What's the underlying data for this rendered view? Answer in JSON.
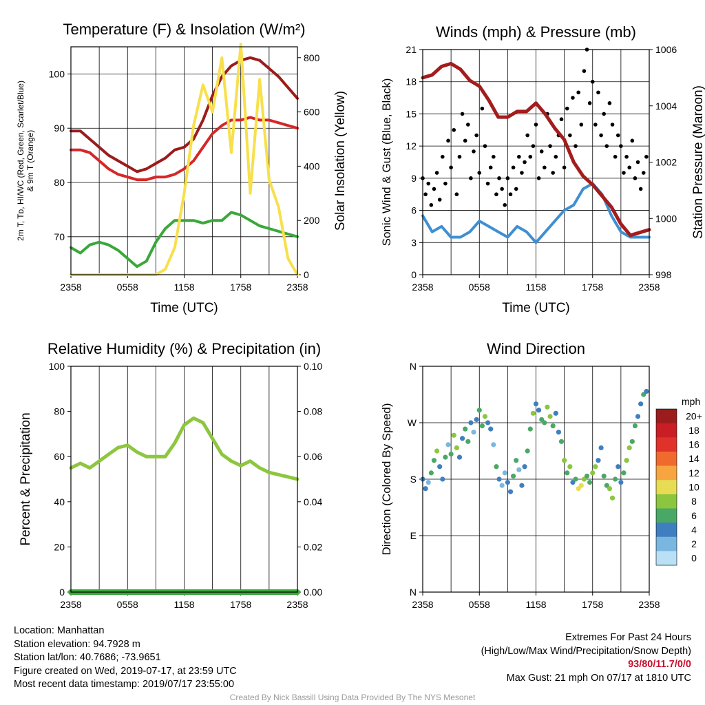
{
  "time_ticks": [
    "2358",
    "0558",
    "1158",
    "1758",
    "2358"
  ],
  "chart_data": [
    {
      "type": "line",
      "title": "Temperature (F) & Insolation (W/m²)",
      "xlabel": "Time (UTC)",
      "ylabel": "2m T, Tᴅ, HI/WC (Red, Green, Scarlet/Blue) & 9m T (Orange)",
      "ylabel_lines": [
        "2m T, Tᴅ, HI/WC (Red, Green, Scarlet/Blue)",
        "& 9m T (Orange)"
      ],
      "ylabel_right": "Solar Insolation (Yellow)",
      "ylim": [
        63,
        105
      ],
      "ylim_right": [
        0,
        840
      ],
      "yticks": [
        70,
        80,
        90,
        100
      ],
      "yticks_right": [
        0,
        200,
        400,
        600,
        800
      ],
      "x_hours": [
        0,
        1,
        2,
        3,
        4,
        5,
        6,
        7,
        8,
        9,
        10,
        11,
        12,
        13,
        14,
        15,
        16,
        17,
        18,
        19,
        20,
        21,
        22,
        23,
        24
      ],
      "series": [
        {
          "color": "#9b1c1c",
          "axis": "left",
          "values": [
            89.5,
            89.5,
            88,
            86.5,
            85,
            84,
            83,
            82,
            82.5,
            83.5,
            84.5,
            86,
            86.5,
            88,
            91.5,
            96,
            99.5,
            101.5,
            102.5,
            103,
            102.5,
            101,
            99.5,
            97.5,
            95.5
          ]
        },
        {
          "color": "#d62728",
          "axis": "left",
          "values": [
            86,
            86,
            85.5,
            84,
            82.5,
            81.5,
            81,
            80.5,
            80.5,
            81,
            81,
            81.5,
            82.5,
            84,
            86.5,
            89,
            90.5,
            91.5,
            91.5,
            92,
            91.5,
            91.5,
            91,
            90.5,
            90
          ]
        },
        {
          "color": "#3aa83a",
          "axis": "left",
          "values": [
            68,
            67,
            68.5,
            69,
            68.5,
            67.5,
            66,
            64.5,
            65.5,
            69,
            71.5,
            73,
            73,
            73,
            72.5,
            73,
            73,
            74.5,
            74,
            73,
            72,
            71.5,
            71,
            70.5,
            70
          ]
        },
        {
          "color": "#f7e04b",
          "axis": "right",
          "values": [
            0,
            0,
            0,
            0,
            0,
            0,
            0,
            0,
            0,
            0,
            20,
            100,
            300,
            550,
            700,
            600,
            800,
            450,
            850,
            300,
            720,
            350,
            250,
            60,
            0
          ]
        }
      ]
    },
    {
      "type": "line",
      "title": "Winds (mph) & Pressure (mb)",
      "xlabel": "Time (UTC)",
      "ylabel": "Sonic Wind & Gust (Blue, Black)",
      "ylabel_right": "Station Pressure (Maroon)",
      "ylim": [
        0,
        21
      ],
      "ylim_right": [
        998,
        1006
      ],
      "yticks": [
        0,
        3,
        6,
        9,
        12,
        15,
        18,
        21
      ],
      "yticks_right": [
        998,
        1000,
        1002,
        1004,
        1006
      ],
      "x_hours": [
        0,
        1,
        2,
        3,
        4,
        5,
        6,
        7,
        8,
        9,
        10,
        11,
        12,
        13,
        14,
        15,
        16,
        17,
        18,
        19,
        20,
        21,
        22,
        23,
        24
      ],
      "series": [
        {
          "color": "#3f8fd2",
          "axis": "left",
          "values": [
            5.5,
            4,
            4.5,
            3.5,
            3.5,
            4,
            5,
            4.5,
            4,
            3.5,
            4.5,
            4,
            3,
            4,
            5,
            6,
            6.5,
            8,
            8.5,
            7.5,
            5.5,
            4,
            3.5,
            3.5,
            3.5
          ]
        },
        {
          "color": "#a31d1d",
          "axis": "right",
          "values": [
            1005,
            1005.1,
            1005.4,
            1005.5,
            1005.3,
            1004.9,
            1004.7,
            1004.2,
            1003.6,
            1003.6,
            1003.8,
            1003.8,
            1004.1,
            1003.7,
            1003.2,
            1002.8,
            1002.0,
            1001.5,
            1001.2,
            1000.8,
            1000.4,
            999.8,
            999.4,
            999.5,
            999.6
          ]
        }
      ],
      "gust_hours": [
        0.0,
        0.3,
        0.6,
        0.9,
        1.2,
        1.5,
        1.8,
        2.1,
        2.4,
        2.7,
        3.0,
        3.3,
        3.6,
        3.9,
        4.2,
        4.5,
        4.8,
        5.1,
        5.4,
        5.7,
        6.0,
        6.3,
        6.6,
        6.9,
        7.2,
        7.5,
        7.8,
        8.1,
        8.4,
        8.7,
        9.0,
        9.3,
        9.6,
        9.9,
        10.2,
        10.5,
        10.8,
        11.1,
        11.4,
        11.7,
        12.0,
        12.3,
        12.6,
        12.9,
        13.2,
        13.5,
        13.8,
        14.1,
        14.4,
        14.7,
        15.0,
        15.3,
        15.6,
        15.9,
        16.2,
        16.5,
        16.8,
        17.1,
        17.4,
        17.7,
        18.0,
        18.3,
        18.6,
        18.9,
        19.2,
        19.5,
        19.8,
        20.1,
        20.4,
        20.7,
        21.0,
        21.3,
        21.6,
        21.9,
        22.2,
        22.5,
        22.8,
        23.1,
        23.4,
        23.7
      ],
      "gust_values": [
        9,
        7.5,
        8.5,
        6.5,
        8,
        9.5,
        7,
        11,
        8.5,
        12.5,
        10,
        13.5,
        7.5,
        11,
        15,
        12.5,
        14,
        9,
        11.5,
        13,
        9.5,
        15.5,
        12,
        8.5,
        10,
        11,
        7.5,
        9,
        8,
        6.5,
        9,
        7.5,
        10,
        8,
        11,
        9.5,
        10.5,
        13,
        11,
        12,
        14,
        9,
        11.5,
        10,
        15,
        12,
        9.5,
        11,
        13,
        14.5,
        10,
        15.5,
        13,
        16.5,
        12,
        17,
        14,
        19,
        21,
        16,
        18,
        14,
        17,
        13,
        15,
        12,
        16,
        14,
        11,
        13,
        12,
        9.5,
        11,
        10,
        12.5,
        9,
        10.5,
        8,
        9.5,
        11
      ]
    },
    {
      "type": "line",
      "title": "Relative Humidity (%) & Precipitation (in)",
      "xlabel": "",
      "ylabel": "Percent & Precipitation",
      "ylabel_right": "",
      "ylim": [
        0,
        100
      ],
      "ylim_right": [
        0,
        0.1
      ],
      "yticks": [
        0,
        20,
        40,
        60,
        80,
        100
      ],
      "yticks_right": [
        "0.00",
        "0.02",
        "0.04",
        "0.06",
        "0.08",
        "0.10"
      ],
      "x_hours": [
        0,
        1,
        2,
        3,
        4,
        5,
        6,
        7,
        8,
        9,
        10,
        11,
        12,
        13,
        14,
        15,
        16,
        17,
        18,
        19,
        20,
        21,
        22,
        23,
        24
      ],
      "series": [
        {
          "color": "#8dc63f",
          "axis": "left",
          "values": [
            55,
            57,
            55,
            58,
            61,
            64,
            65,
            62,
            60,
            60,
            60,
            66,
            74,
            77,
            75,
            68,
            61,
            58,
            56,
            58,
            55,
            53,
            52,
            51,
            50
          ]
        },
        {
          "color": "#3aa83a",
          "axis": "right",
          "values": [
            0,
            0,
            0,
            0,
            0,
            0,
            0,
            0,
            0,
            0,
            0,
            0,
            0,
            0,
            0,
            0,
            0,
            0,
            0,
            0,
            0,
            0,
            0,
            0,
            0
          ]
        }
      ]
    },
    {
      "type": "scatter",
      "title": "Wind Direction",
      "xlabel": "",
      "ylabel": "Direction (Colored By Speed)",
      "ylim": [
        0,
        360
      ],
      "yticks": [
        0,
        90,
        180,
        270,
        360
      ],
      "ytick_labels": [
        "N",
        "E",
        "S",
        "W",
        "N"
      ],
      "colorbar_title": "mph",
      "colorbar_labels": [
        "20+",
        "18",
        "16",
        "14",
        "12",
        "10",
        "8",
        "6",
        "4",
        "2",
        "0"
      ],
      "colorbar_colors": [
        "#9b1c1c",
        "#c81e24",
        "#e0322b",
        "#f06a2e",
        "#f7a540",
        "#e8dc55",
        "#8cc63f",
        "#4aa866",
        "#3f7fbf",
        "#7ab7e0",
        "#b9e0f5"
      ],
      "points_hours": [
        0.0,
        0.3,
        0.6,
        0.9,
        1.2,
        1.5,
        1.8,
        2.1,
        2.4,
        2.7,
        3.0,
        3.3,
        3.6,
        3.9,
        4.2,
        4.5,
        4.8,
        5.1,
        5.4,
        5.7,
        6.0,
        6.3,
        6.6,
        6.9,
        7.2,
        7.5,
        7.8,
        8.1,
        8.4,
        8.7,
        9.0,
        9.3,
        9.6,
        9.9,
        10.2,
        10.5,
        10.8,
        11.1,
        11.4,
        11.7,
        12.0,
        12.3,
        12.6,
        12.9,
        13.2,
        13.5,
        13.8,
        14.1,
        14.4,
        14.7,
        15.0,
        15.3,
        15.6,
        15.9,
        16.2,
        16.5,
        16.8,
        17.1,
        17.4,
        17.7,
        18.0,
        18.3,
        18.6,
        18.9,
        19.2,
        19.5,
        19.8,
        20.1,
        20.4,
        20.7,
        21.0,
        21.3,
        21.6,
        21.9,
        22.2,
        22.5,
        22.8,
        23.1,
        23.4,
        23.7
      ],
      "points_values": [
        180,
        165,
        175,
        190,
        210,
        225,
        200,
        180,
        215,
        235,
        220,
        250,
        230,
        215,
        245,
        260,
        240,
        270,
        255,
        275,
        290,
        265,
        280,
        270,
        260,
        235,
        200,
        180,
        170,
        190,
        175,
        160,
        185,
        210,
        195,
        170,
        200,
        225,
        260,
        285,
        300,
        290,
        275,
        270,
        295,
        280,
        265,
        285,
        255,
        240,
        210,
        190,
        200,
        175,
        180,
        165,
        170,
        180,
        185,
        175,
        190,
        200,
        210,
        230,
        185,
        170,
        165,
        150,
        180,
        200,
        175,
        190,
        210,
        230,
        240,
        265,
        280,
        300,
        315,
        320
      ],
      "points_speeds": [
        3,
        4,
        2,
        5,
        6,
        7,
        3,
        4,
        5,
        2,
        6,
        7,
        8,
        3,
        4,
        5,
        6,
        3,
        2,
        4,
        5,
        6,
        7,
        3,
        4,
        2,
        5,
        3,
        1,
        2,
        4,
        3,
        5,
        6,
        2,
        3,
        4,
        5,
        6,
        7,
        3,
        4,
        5,
        6,
        7,
        8,
        5,
        4,
        3,
        6,
        7,
        5,
        8,
        4,
        6,
        9,
        10,
        7,
        6,
        5,
        8,
        7,
        4,
        3,
        5,
        6,
        7,
        8,
        5,
        4,
        3,
        6,
        7,
        8,
        5,
        6,
        4,
        3,
        5,
        4
      ]
    }
  ],
  "info": {
    "location": "Location: Manhattan",
    "elevation": "Station elevation: 94.7928 m",
    "latlon": "Station lat/lon: 40.7686; -73.9651",
    "created": "Figure created on Wed, 2019-07-17, at 23:59 UTC",
    "recent": "Most recent data timestamp: 2019/07/17 23:55:00"
  },
  "extremes": {
    "title": "Extremes For Past 24 Hours",
    "subtitle": "(High/Low/Max Wind/Precipitation/Snow Depth)",
    "values": "93/80/11.7/0/0",
    "gust": "Max Gust: 21 mph On 07/17 at 1810 UTC"
  },
  "credit": "Created By Nick Bassill Using Data Provided By The NYS Mesonet"
}
